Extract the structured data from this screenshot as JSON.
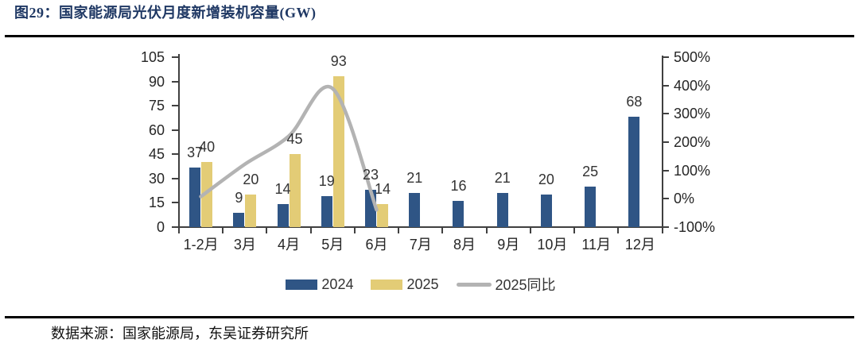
{
  "figure": {
    "title": "图29：国家能源局光伏月度新增装机容量(GW)",
    "source": "数据来源：国家能源局，东吴证券研究所"
  },
  "colors": {
    "title_navy": "#1f3864",
    "bar_2024_blue": "#2f5585",
    "bar_2025_yellow": "#e3cc76",
    "yoy_line_gray": "#b3b3b3",
    "axis": "#404040"
  },
  "chart_data": {
    "type": "combo-bar-line",
    "title": "国家能源局光伏月度新增装机容量(GW)",
    "categories": [
      "1-2月",
      "3月",
      "4月",
      "5月",
      "6月",
      "7月",
      "8月",
      "9月",
      "10月",
      "11月",
      "12月"
    ],
    "series": [
      {
        "name": "2024",
        "type": "bar",
        "axis": "left",
        "color": "#2f5585",
        "values": [
          37,
          9,
          14,
          19,
          23,
          21,
          16,
          21,
          20,
          25,
          68
        ]
      },
      {
        "name": "2025",
        "type": "bar",
        "axis": "left",
        "color": "#e3cc76",
        "values": [
          40,
          20,
          45,
          93,
          14,
          null,
          null,
          null,
          null,
          null,
          null
        ]
      },
      {
        "name": "2025同比",
        "type": "line",
        "axis": "right",
        "unit": "%",
        "color": "#b3b3b3",
        "values": [
          8,
          122,
          221,
          389,
          -39,
          null,
          null,
          null,
          null,
          null,
          null
        ]
      }
    ],
    "left_axis": {
      "min": 0,
      "max": 105,
      "step": 15,
      "tick_labels": [
        "0",
        "15",
        "30",
        "45",
        "60",
        "75",
        "90",
        "105"
      ]
    },
    "right_axis": {
      "min": -100,
      "max": 500,
      "step": 100,
      "tick_labels": [
        "-100%",
        "0%",
        "100%",
        "200%",
        "300%",
        "400%",
        "500%"
      ]
    },
    "grid": false,
    "bar_value_labels": true,
    "legend_position": "bottom"
  }
}
